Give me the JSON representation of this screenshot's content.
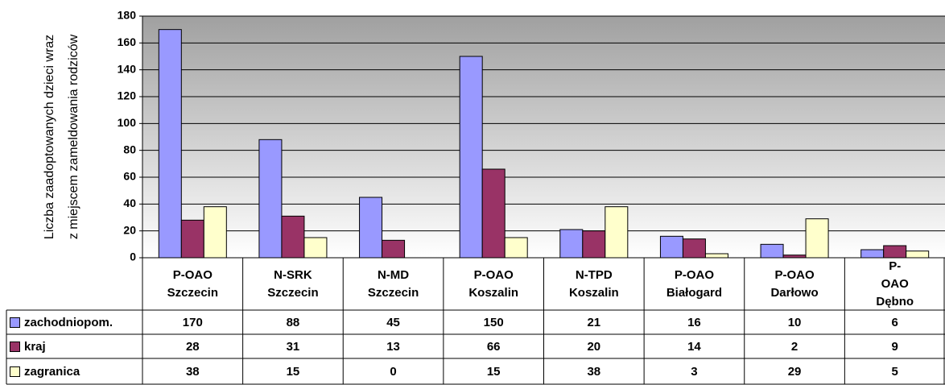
{
  "chart_data": {
    "type": "bar",
    "ylabel": [
      "Liczba zaadoptowanych dzieci wraz",
      "z miejscem zameldowania rodziców"
    ],
    "categories": [
      "P-OAO Szczecin",
      "N-SRK Szczecin",
      "N-MD Szczecin",
      "P-OAO Koszalin",
      "N-TPD Koszalin",
      "P-OAO Białogard",
      "P-OAO Darłowo",
      "P-OAO Dębno"
    ],
    "series": [
      {
        "name": "zachodniopom.",
        "color": "#9999ff",
        "values": [
          170,
          88,
          45,
          150,
          21,
          16,
          10,
          6
        ]
      },
      {
        "name": "kraj",
        "color": "#993366",
        "values": [
          28,
          31,
          13,
          66,
          20,
          14,
          2,
          9
        ]
      },
      {
        "name": "zagranica",
        "color": "#ffffcc",
        "values": [
          38,
          15,
          0,
          15,
          38,
          3,
          29,
          5
        ]
      }
    ],
    "ylim": [
      0,
      180
    ],
    "yticks": [
      0,
      20,
      40,
      60,
      80,
      100,
      120,
      140,
      160,
      180
    ],
    "grid": true
  }
}
